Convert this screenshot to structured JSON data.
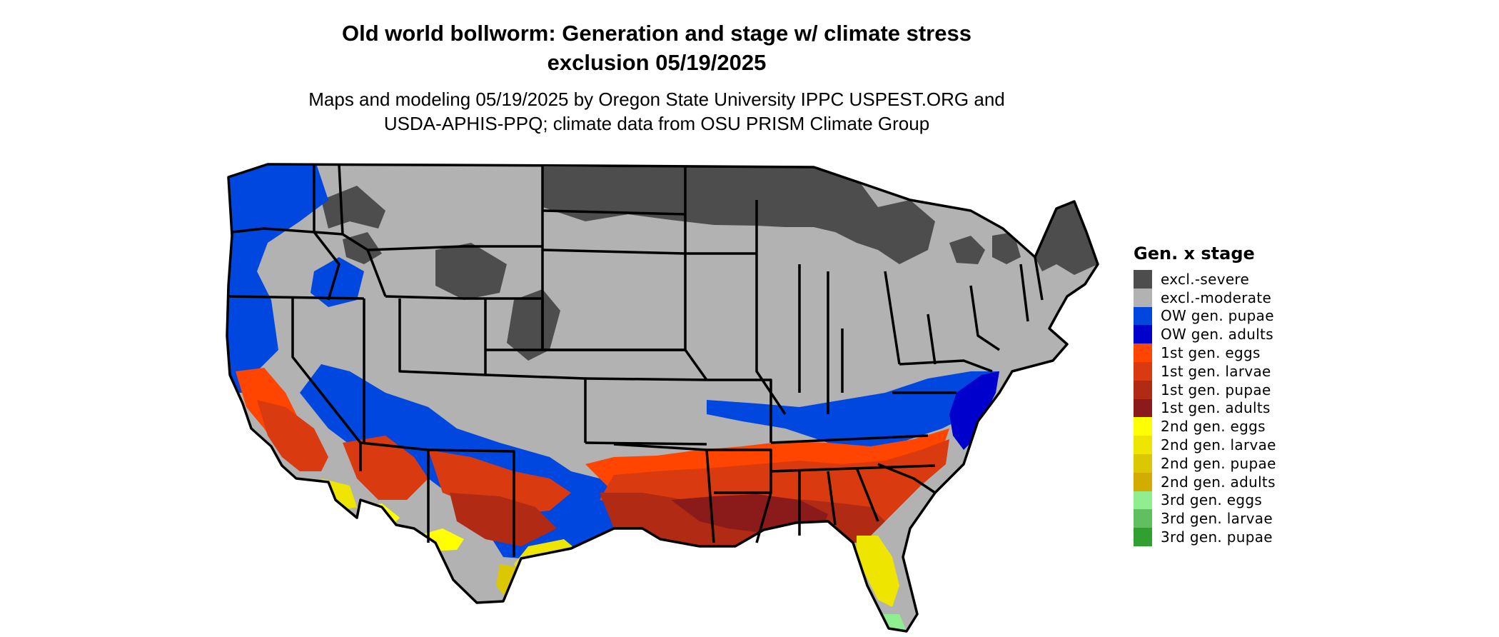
{
  "title": {
    "line1": "Old world bollworm: Generation and stage w/ climate stress",
    "line2": "exclusion 05/19/2025"
  },
  "subtitle": {
    "line1": "Maps and modeling 05/19/2025 by Oregon State University IPPC USPEST.ORG and",
    "line2": "USDA-APHIS-PPQ; climate data from OSU PRISM Climate Group"
  },
  "legend": {
    "title": "Gen. x stage",
    "items": [
      {
        "label": "excl.-severe",
        "color": "#4d4d4d"
      },
      {
        "label": "excl.-moderate",
        "color": "#b2b2b2"
      },
      {
        "label": "OW gen. pupae",
        "color": "#0047e0"
      },
      {
        "label": "OW gen. adults",
        "color": "#0000cd"
      },
      {
        "label": "1st gen. eggs",
        "color": "#ff4500"
      },
      {
        "label": "1st gen. larvae",
        "color": "#d93a0f"
      },
      {
        "label": "1st gen. pupae",
        "color": "#b02a14"
      },
      {
        "label": "1st gen. adults",
        "color": "#8b1a1a"
      },
      {
        "label": "2nd gen. eggs",
        "color": "#ffff00"
      },
      {
        "label": "2nd gen. larvae",
        "color": "#eee500"
      },
      {
        "label": "2nd gen. pupae",
        "color": "#dcc800"
      },
      {
        "label": "2nd gen. adults",
        "color": "#d2ad00"
      },
      {
        "label": "3rd gen. eggs",
        "color": "#90ee90"
      },
      {
        "label": "3rd gen. larvae",
        "color": "#60c060"
      },
      {
        "label": "3rd gen. pupae",
        "color": "#30a030"
      }
    ]
  }
}
